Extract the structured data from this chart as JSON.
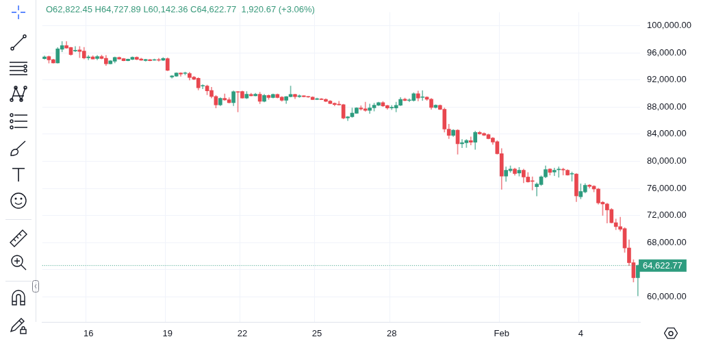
{
  "chart_data": {
    "type": "candlestick",
    "annotations": [
      "O62,822.45 H64,727.89 L60,142.36 C64,622.77  1,920.67 (+3.06%)"
    ],
    "categories": [
      null,
      null,
      null,
      null,
      null,
      null,
      null,
      null,
      null,
      null,
      "16",
      null,
      null,
      null,
      null,
      null,
      null,
      null,
      null,
      null,
      null,
      null,
      null,
      null,
      null,
      null,
      null,
      null,
      "19",
      null,
      null,
      null,
      null,
      null,
      null,
      null,
      null,
      null,
      null,
      null,
      null,
      null,
      null,
      null,
      null,
      "22",
      null,
      null,
      null,
      null,
      null,
      null,
      null,
      null,
      null,
      null,
      null,
      null,
      null,
      null,
      null,
      null,
      "25",
      null,
      null,
      null,
      null,
      null,
      null,
      null,
      null,
      null,
      null,
      null,
      null,
      null,
      null,
      null,
      null,
      "28",
      null,
      null,
      null,
      null,
      null,
      null,
      null,
      null,
      null,
      null,
      null,
      null,
      null,
      null,
      null,
      null,
      null,
      null,
      null,
      null,
      null,
      null,
      null,
      null,
      "Feb",
      null,
      null,
      null,
      null,
      null,
      null,
      null,
      null,
      null,
      null,
      null,
      null,
      null,
      null,
      null,
      null,
      null,
      "4",
      null,
      null,
      null,
      null,
      null,
      null,
      null,
      null,
      null,
      null,
      null,
      null,
      null
    ],
    "ohlc": [
      [
        95140,
        95560,
        95070,
        95400
      ],
      [
        95460,
        95560,
        94490,
        94970
      ],
      [
        95010,
        95070,
        94490,
        94520
      ],
      [
        94520,
        96790,
        94490,
        96590
      ],
      [
        96530,
        97670,
        96140,
        97080
      ],
      [
        97080,
        97670,
        96660,
        96720
      ],
      [
        96790,
        96850,
        95620,
        95750
      ],
      [
        96270,
        96950,
        96140,
        96400
      ],
      [
        96430,
        96950,
        95300,
        96210
      ],
      [
        96270,
        96820,
        95100,
        95230
      ],
      [
        95270,
        95620,
        94970,
        95400
      ],
      [
        95400,
        95590,
        95100,
        95100
      ],
      [
        95170,
        95620,
        94970,
        95460
      ],
      [
        95460,
        95690,
        95100,
        95170
      ],
      [
        95200,
        95620,
        94130,
        94390
      ],
      [
        94390,
        94910,
        94360,
        94810
      ],
      [
        94750,
        95400,
        94520,
        95330
      ],
      [
        95330,
        95400,
        95040,
        95100
      ],
      [
        95140,
        95200,
        94810,
        94840
      ],
      [
        94840,
        95100,
        94810,
        95070
      ],
      [
        95040,
        95430,
        94970,
        95360
      ],
      [
        95360,
        95430,
        94970,
        95040
      ],
      [
        95100,
        95230,
        94880,
        94910
      ],
      [
        94860,
        95070,
        94750,
        95030
      ],
      [
        95010,
        95040,
        94810,
        94840
      ],
      [
        94910,
        95100,
        94880,
        95010
      ],
      [
        95010,
        95200,
        94750,
        94910
      ],
      [
        94910,
        95330,
        94840,
        95170
      ],
      [
        95140,
        95270,
        93350,
        93420
      ],
      [
        92440,
        92670,
        92250,
        92610
      ],
      [
        92570,
        93090,
        92510,
        93030
      ],
      [
        93030,
        93090,
        92540,
        92870
      ],
      [
        92960,
        93190,
        92740,
        93030
      ],
      [
        92960,
        93160,
        91990,
        92350
      ],
      [
        92410,
        92540,
        92020,
        92120
      ],
      [
        92250,
        92350,
        90530,
        90850
      ],
      [
        91090,
        91320,
        90700,
        91120
      ],
      [
        91120,
        91250,
        89820,
        90380
      ],
      [
        90440,
        90930,
        89340,
        89560
      ],
      [
        89560,
        89730,
        87870,
        88330
      ],
      [
        88330,
        89400,
        88200,
        89300
      ],
      [
        89300,
        89950,
        88980,
        89040
      ],
      [
        89080,
        89400,
        88590,
        88650
      ],
      [
        88650,
        90410,
        88200,
        90280
      ],
      [
        90210,
        90310,
        87290,
        90180
      ],
      [
        90310,
        90380,
        89300,
        89340
      ],
      [
        89340,
        90310,
        89240,
        89890
      ],
      [
        89860,
        90050,
        89630,
        89660
      ],
      [
        89660,
        90050,
        89630,
        89890
      ],
      [
        89890,
        90210,
        88490,
        88850
      ],
      [
        88850,
        89890,
        88750,
        89730
      ],
      [
        89730,
        89820,
        89140,
        89400
      ],
      [
        89400,
        89950,
        89340,
        89860
      ],
      [
        89860,
        89950,
        89340,
        89400
      ],
      [
        89470,
        89560,
        88850,
        89010
      ],
      [
        89010,
        89560,
        88520,
        89530
      ],
      [
        89530,
        91120,
        89470,
        89860
      ],
      [
        89860,
        89920,
        89240,
        89530
      ],
      [
        89530,
        89820,
        89400,
        89660
      ],
      [
        89660,
        89690,
        89470,
        89530
      ],
      [
        89530,
        89600,
        89400,
        89470
      ],
      [
        89470,
        89530,
        89080,
        89110
      ],
      [
        89140,
        89340,
        89080,
        89210
      ],
      [
        89210,
        89300,
        89080,
        89110
      ],
      [
        89140,
        89240,
        88780,
        88850
      ],
      [
        88880,
        88980,
        88460,
        88520
      ],
      [
        88560,
        88620,
        88170,
        88360
      ],
      [
        88430,
        88850,
        88260,
        88330
      ],
      [
        88360,
        88430,
        86250,
        86380
      ],
      [
        86410,
        86630,
        85990,
        86570
      ],
      [
        86570,
        87870,
        86470,
        87120
      ],
      [
        87090,
        87930,
        87060,
        87870
      ],
      [
        87870,
        88190,
        87540,
        87710
      ],
      [
        87740,
        88740,
        87350,
        87510
      ],
      [
        87510,
        88450,
        87060,
        87870
      ],
      [
        87900,
        88580,
        87410,
        88290
      ],
      [
        88260,
        88740,
        88190,
        88650
      ],
      [
        88650,
        88840,
        88060,
        88160
      ],
      [
        88220,
        88290,
        87670,
        87870
      ],
      [
        87870,
        88260,
        87610,
        87900
      ],
      [
        87870,
        88740,
        87280,
        88260
      ],
      [
        88260,
        89420,
        88190,
        89130
      ],
      [
        89160,
        89330,
        88910,
        88970
      ],
      [
        88970,
        89230,
        88780,
        89040
      ],
      [
        88970,
        90110,
        88840,
        89980
      ],
      [
        89980,
        90370,
        88910,
        89330
      ],
      [
        89420,
        90430,
        88970,
        89460
      ],
      [
        89460,
        89550,
        88970,
        89160
      ],
      [
        89160,
        89290,
        87670,
        87930
      ],
      [
        87930,
        88350,
        87830,
        88290
      ],
      [
        88260,
        88320,
        87610,
        87670
      ],
      [
        87670,
        87870,
        84300,
        84750
      ],
      [
        84750,
        85470,
        83330,
        83810
      ],
      [
        83810,
        84690,
        83650,
        84590
      ],
      [
        84590,
        84690,
        81050,
        82580
      ],
      [
        82580,
        83230,
        82000,
        82740
      ],
      [
        82740,
        83230,
        82030,
        83070
      ],
      [
        83060,
        83610,
        82410,
        82800
      ],
      [
        82800,
        84460,
        81760,
        84260
      ],
      [
        84260,
        84430,
        83970,
        84040
      ],
      [
        84100,
        84200,
        83780,
        83840
      ],
      [
        83940,
        84040,
        83290,
        83350
      ],
      [
        83420,
        83520,
        82480,
        82840
      ],
      [
        82900,
        83060,
        81050,
        81120
      ],
      [
        81120,
        81890,
        75860,
        77810
      ],
      [
        77810,
        79170,
        77030,
        78680
      ],
      [
        78620,
        79330,
        78360,
        78850
      ],
      [
        78850,
        79010,
        77940,
        78200
      ],
      [
        78260,
        79100,
        77810,
        78680
      ],
      [
        78680,
        78850,
        76830,
        77680
      ],
      [
        77680,
        78360,
        76900,
        76960
      ],
      [
        77090,
        77710,
        75760,
        77030
      ],
      [
        76250,
        76830,
        74890,
        76640
      ],
      [
        76570,
        77870,
        76410,
        77710
      ],
      [
        77710,
        79330,
        77550,
        78780
      ],
      [
        78850,
        78940,
        77970,
        78360
      ],
      [
        78420,
        79010,
        77870,
        78680
      ],
      [
        78750,
        79170,
        77640,
        78780
      ],
      [
        78780,
        79010,
        77970,
        78720
      ],
      [
        78680,
        78780,
        77940,
        77970
      ],
      [
        78100,
        78420,
        77060,
        78160
      ],
      [
        78130,
        78200,
        74040,
        74890
      ],
      [
        74770,
        76680,
        74450,
        75550
      ],
      [
        75480,
        76720,
        75320,
        76460
      ],
      [
        76490,
        76590,
        76030,
        76290
      ],
      [
        76330,
        76420,
        75480,
        75910
      ],
      [
        75910,
        76030,
        73670,
        73860
      ],
      [
        73960,
        74090,
        72010,
        73700
      ],
      [
        73700,
        73830,
        70880,
        72820
      ],
      [
        72890,
        73050,
        70880,
        70940
      ],
      [
        70940,
        71490,
        69900,
        70360
      ],
      [
        70360,
        71750,
        69710,
        69970
      ],
      [
        70070,
        70230,
        66560,
        67210
      ],
      [
        67210,
        68410,
        64620,
        65040
      ],
      [
        65040,
        65490,
        62180,
        62820
      ],
      [
        62822.45,
        64727.89,
        60142.36,
        64622.77
      ]
    ],
    "ylim": [
      56300,
      102000
    ],
    "yticks": [
      {
        "value": 60000,
        "label": "60,000.00"
      },
      {
        "value": 64000,
        "label": null
      },
      {
        "value": 68000,
        "label": "68,000.00"
      },
      {
        "value": 72000,
        "label": "72,000.00"
      },
      {
        "value": 76000,
        "label": "76,000.00"
      },
      {
        "value": 80000,
        "label": "80,000.00"
      },
      {
        "value": 84000,
        "label": "84,000.00"
      },
      {
        "value": 88000,
        "label": "88,000.00"
      },
      {
        "value": 92000,
        "label": "92,000.00"
      },
      {
        "value": 96000,
        "label": "96,000.00"
      },
      {
        "value": 100000,
        "label": "100,000.00"
      }
    ],
    "grid": true,
    "ref_lines": [
      {
        "axis": "y",
        "value": 64622.77,
        "label": "64,622.77",
        "color": "#2e9c7f",
        "line_style": "dotted"
      }
    ]
  }
}
